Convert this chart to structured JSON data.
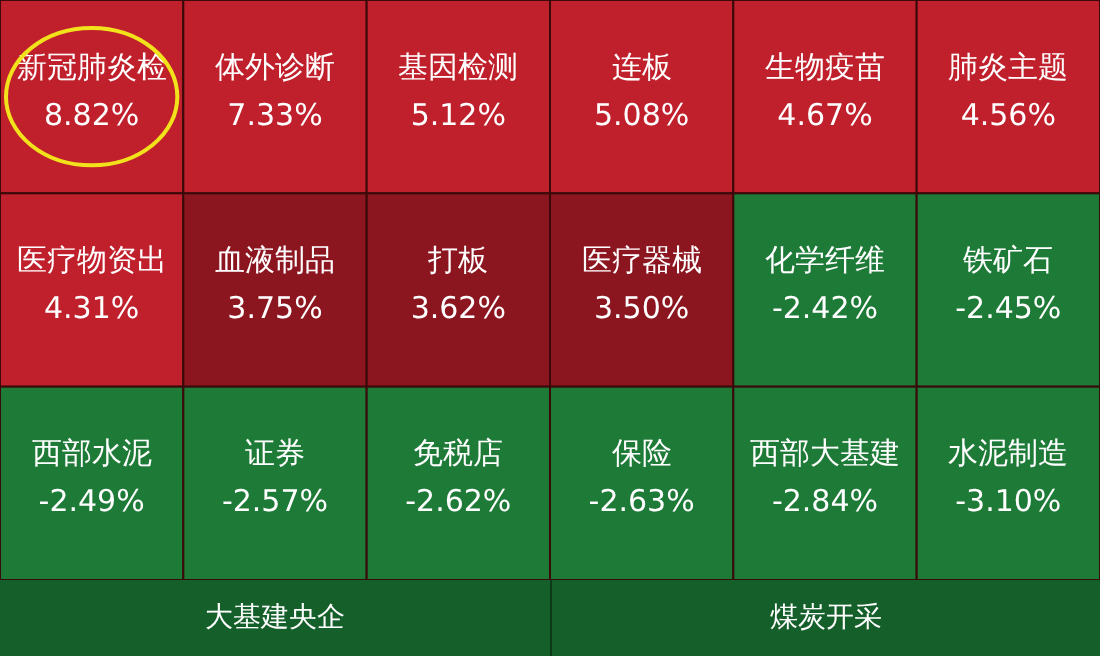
{
  "chart_data": {
    "type": "other",
    "categories": [
      "新冠肺炎检",
      "体外诊断",
      "基因检测",
      "连板",
      "生物疫苗",
      "肺炎主题",
      "医疗物资出",
      "血液制品",
      "打板",
      "医疗器械",
      "化学纤维",
      "铁矿石",
      "西部水泥",
      "证券",
      "免税店",
      "保险",
      "西部大基建",
      "水泥制造"
    ],
    "values": [
      8.82,
      7.33,
      5.12,
      5.08,
      4.67,
      4.56,
      4.31,
      3.75,
      3.62,
      3.5,
      -2.42,
      -2.45,
      -2.49,
      -2.57,
      -2.62,
      -2.63,
      -2.84,
      -3.1
    ],
    "value_labels": [
      "8.82%",
      "7.33%",
      "5.12%",
      "5.08%",
      "4.67%",
      "4.56%",
      "4.31%",
      "3.75%",
      "3.62%",
      "3.50%",
      "-2.42%",
      "-2.45%",
      "-2.49%",
      "-2.57%",
      "-2.62%",
      "-2.63%",
      "-2.84%",
      "-3.10%"
    ],
    "colors": [
      "#c0202b",
      "#c0202b",
      "#c0202b",
      "#c0202b",
      "#c0202b",
      "#c0202b",
      "#c0202b",
      "#8c1620",
      "#8c1620",
      "#8c1620",
      "#1e7a37",
      "#1e7a37",
      "#1e7a37",
      "#1e7a37",
      "#1e7a37",
      "#1e7a37",
      "#1e7a37",
      "#1e7a37"
    ],
    "annotations": [
      "大基建央企",
      "煤炭开采"
    ]
  }
}
